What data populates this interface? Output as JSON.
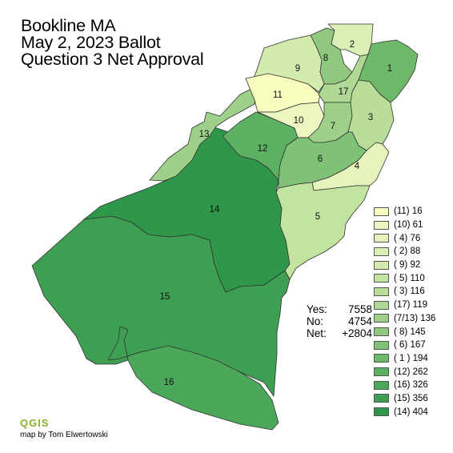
{
  "title": {
    "line1": "Bookline MA",
    "line2": "May 2, 2023 Ballot",
    "line3": "Question 3 Net Approval"
  },
  "totals": {
    "yes_label": "Yes:",
    "yes_value": "7558",
    "no_label": "No:",
    "no_value": "4754",
    "net_label": "Net:",
    "net_value": "+2804"
  },
  "legend": [
    {
      "label": "(11) 16",
      "color": "#f8fcbf"
    },
    {
      "label": "(10) 61",
      "color": "#ecf6c0"
    },
    {
      "label": "( 4) 76",
      "color": "#e5f3bd"
    },
    {
      "label": "( 2) 88",
      "color": "#dcefb6"
    },
    {
      "label": "( 9) 92",
      "color": "#d3ebad"
    },
    {
      "label": "( 5) 110",
      "color": "#c3e3a0"
    },
    {
      "label": "( 3) 116",
      "color": "#b8de9a"
    },
    {
      "label": "(17) 119",
      "color": "#aed893"
    },
    {
      "label": "(7/13) 136",
      "color": "#9fd08a"
    },
    {
      "label": "( 8) 145",
      "color": "#90c87f"
    },
    {
      "label": "( 6) 167",
      "color": "#7fc176"
    },
    {
      "label": "( 1 ) 194",
      "color": "#6eb86a"
    },
    {
      "label": "(12) 262",
      "color": "#5cb061"
    },
    {
      "label": "(16) 326",
      "color": "#4ba75a"
    },
    {
      "label": "(15) 356",
      "color": "#3e9e52"
    },
    {
      "label": "(14) 404",
      "color": "#2f974a"
    }
  ],
  "precinct_labels": [
    "1",
    "2",
    "3",
    "4",
    "5",
    "6",
    "7",
    "8",
    "9",
    "10",
    "11",
    "12",
    "13",
    "14",
    "15",
    "16",
    "17"
  ],
  "software_logo": "QGIS",
  "credit": "map by Tom Elwertowski"
}
